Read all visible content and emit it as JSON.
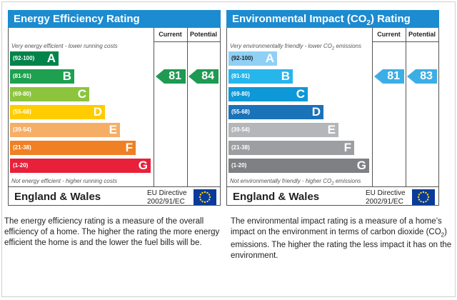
{
  "chart_data": [
    {
      "type": "bar",
      "title": "Energy Efficiency Rating",
      "column_current": "Current",
      "column_potential": "Potential",
      "note_top": "Very energy efficient - lower running costs",
      "note_bottom": "Not energy efficient - higher running costs",
      "bands": [
        {
          "range": "(92-100)",
          "letter": "A",
          "min": 92,
          "max": 100,
          "color": "#00844a"
        },
        {
          "range": "(81-91)",
          "letter": "B",
          "min": 81,
          "max": 91,
          "color": "#1ea050"
        },
        {
          "range": "(69-80)",
          "letter": "C",
          "min": 69,
          "max": 80,
          "color": "#8cc43e"
        },
        {
          "range": "(55-68)",
          "letter": "D",
          "min": 55,
          "max": 68,
          "color": "#ffcc00"
        },
        {
          "range": "(39-54)",
          "letter": "E",
          "min": 39,
          "max": 54,
          "color": "#f6ae66"
        },
        {
          "range": "(21-38)",
          "letter": "F",
          "min": 21,
          "max": 38,
          "color": "#ef8023"
        },
        {
          "range": "(1-20)",
          "letter": "G",
          "min": 1,
          "max": 20,
          "color": "#e8203a"
        }
      ],
      "current": 81,
      "potential": 84,
      "footer_region": "England & Wales",
      "footer_directive_line1": "EU Directive",
      "footer_directive_line2": "2002/91/EC"
    },
    {
      "type": "bar",
      "title_pre": "Environmental Impact (CO",
      "title_sub": "2",
      "title_post": ") Rating",
      "column_current": "Current",
      "column_potential": "Potential",
      "note_top_pre": "Very environmentally friendly - lower CO",
      "note_top_sub": "2",
      "note_top_post": " emissions",
      "note_bottom_pre": "Not environmentally friendly - higher CO",
      "note_bottom_sub": "2",
      "note_bottom_post": " emissions",
      "bands": [
        {
          "range": "(92-100)",
          "letter": "A",
          "min": 92,
          "max": 100,
          "color": "#8fd0f4"
        },
        {
          "range": "(81-91)",
          "letter": "B",
          "min": 81,
          "max": 91,
          "color": "#27b6ec"
        },
        {
          "range": "(69-80)",
          "letter": "C",
          "min": 69,
          "max": 80,
          "color": "#0f98d7"
        },
        {
          "range": "(55-68)",
          "letter": "D",
          "min": 55,
          "max": 68,
          "color": "#1a72b8"
        },
        {
          "range": "(39-54)",
          "letter": "E",
          "min": 39,
          "max": 54,
          "color": "#b4b6b9"
        },
        {
          "range": "(21-38)",
          "letter": "F",
          "min": 21,
          "max": 38,
          "color": "#9c9ea1"
        },
        {
          "range": "(1-20)",
          "letter": "G",
          "min": 1,
          "max": 20,
          "color": "#7f8083"
        }
      ],
      "current": 81,
      "potential": 83,
      "footer_region": "England & Wales",
      "footer_directive_line1": "EU Directive",
      "footer_directive_line2": "2002/91/EC"
    }
  ],
  "descriptions": {
    "left": "The energy efficiency rating is a measure of the overall efficiency of a home. The higher the rating the more energy efficient the home is and the lower the fuel bills will be.",
    "right_pre": "The environmental impact rating is a measure of a home’s impact on the environment in terms of carbon dioxide (CO",
    "right_sub": "2",
    "right_post": ") emissions. The higher the rating the less impact it has on the environment."
  },
  "colors": {
    "title_bar": "#1c8bd0",
    "flag": "#0a3a9c",
    "flag_stars": "#ffdd00"
  }
}
